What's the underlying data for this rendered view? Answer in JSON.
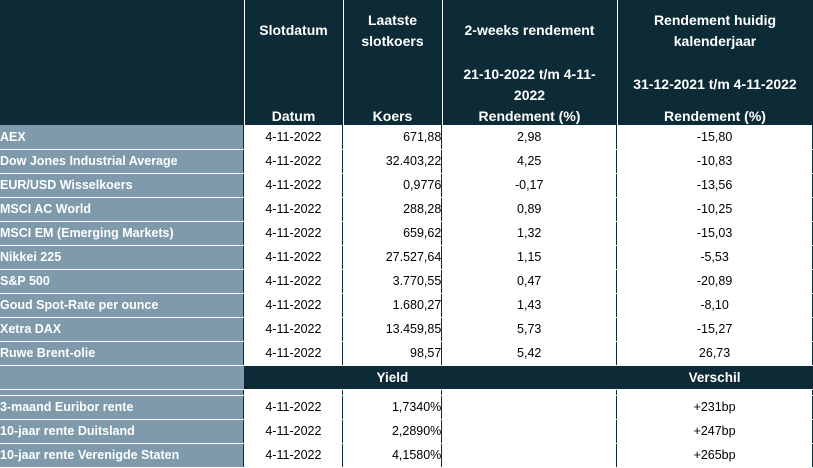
{
  "header": {
    "col_date": "Slotdatum",
    "col_price": [
      "Laatste",
      "slotkoers"
    ],
    "col_2w": "2-weeks rendement",
    "col_ytd": [
      "Rendement huidig",
      "kalenderjaar"
    ],
    "period_2w": [
      "21-10-2022 t/m 4-11-",
      "2022"
    ],
    "period_ytd": "31-12-2021 t/m 4-11-2022",
    "sub_date": "Datum",
    "sub_price": "Koers",
    "sub_2w": "Rendement (%)",
    "sub_ytd": "Rendement (%)"
  },
  "rows": [
    {
      "name": "AEX",
      "date": "4-11-2022",
      "price": "671,88",
      "r2w": "2,98",
      "ytd": "-15,80"
    },
    {
      "name": "Dow Jones Industrial Average",
      "date": "4-11-2022",
      "price": "32.403,22",
      "r2w": "4,25",
      "ytd": "-10,83"
    },
    {
      "name": "EUR/USD Wisselkoers",
      "date": "4-11-2022",
      "price": "0,9776",
      "r2w": "-0,17",
      "ytd": "-13,56"
    },
    {
      "name": "MSCI AC World",
      "date": "4-11-2022",
      "price": "288,28",
      "r2w": "0,89",
      "ytd": "-10,25"
    },
    {
      "name": "MSCI EM (Emerging Markets)",
      "date": "4-11-2022",
      "price": "659,62",
      "r2w": "1,32",
      "ytd": "-15,03"
    },
    {
      "name": "Nikkei 225",
      "date": "4-11-2022",
      "price": "27.527,64",
      "r2w": "1,15",
      "ytd": "-5,53"
    },
    {
      "name": "S&P 500",
      "date": "4-11-2022",
      "price": "3.770,55",
      "r2w": "0,47",
      "ytd": "-20,89"
    },
    {
      "name": "Goud Spot-Rate per ounce",
      "date": "4-11-2022",
      "price": "1.680,27",
      "r2w": "1,43",
      "ytd": "-8,10"
    },
    {
      "name": "Xetra DAX",
      "date": "4-11-2022",
      "price": "13.459,85",
      "r2w": "5,73",
      "ytd": "-15,27"
    },
    {
      "name": "Ruwe Brent-olie",
      "date": "4-11-2022",
      "price": "98,57",
      "r2w": "5,42",
      "ytd": "26,73"
    }
  ],
  "rates_header": {
    "yield": "Yield",
    "verschil": "Verschil"
  },
  "rates": [
    {
      "name": "3-maand Euribor rente",
      "date": "4-11-2022",
      "yield": "1,7340%",
      "diff": "+231bp"
    },
    {
      "name": "10-jaar rente Duitsland",
      "date": "4-11-2022",
      "yield": "2,2890%",
      "diff": "+247bp"
    },
    {
      "name": "10-jaar rente Verenigde Staten",
      "date": "4-11-2022",
      "yield": "4,1580%",
      "diff": "+265bp"
    }
  ],
  "colors": {
    "dark": "#0d2b36",
    "name_column": "#7e9aab",
    "cell": "#ffffff"
  }
}
